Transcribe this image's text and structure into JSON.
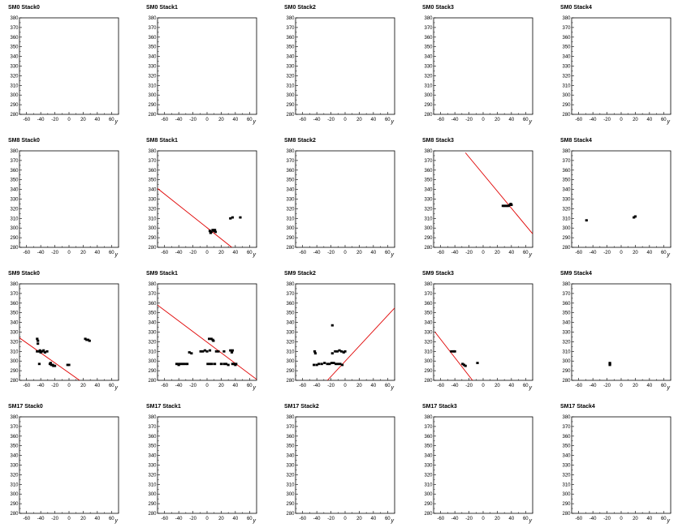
{
  "style": {
    "frame_color": "#000000",
    "fit_color": "#e00000",
    "hit_color": "#000000",
    "background": "#ffffff"
  },
  "chart_data": {
    "type": "scatter",
    "grid": false,
    "xlim": [
      -70,
      70
    ],
    "ylim": [
      280,
      380
    ],
    "xticks": [
      -60,
      -40,
      -20,
      0,
      20,
      40,
      60
    ],
    "yticks": [
      280,
      290,
      300,
      310,
      320,
      330,
      340,
      350,
      360,
      370,
      380
    ],
    "xlabel": "y",
    "ylabel": "",
    "rows": [
      {
        "panels": [
          {
            "title": "SM0 Stack0",
            "hits": [],
            "fit": null
          },
          {
            "title": "SM0 Stack1",
            "hits": [],
            "fit": null
          },
          {
            "title": "SM0 Stack2",
            "hits": [],
            "fit": null
          },
          {
            "title": "SM0 Stack3",
            "hits": [],
            "fit": null
          },
          {
            "title": "SM0 Stack4",
            "hits": [],
            "fit": null
          }
        ]
      },
      {
        "panels": [
          {
            "title": "SM8 Stack0",
            "hits": [],
            "fit": null
          },
          {
            "title": "SM8 Stack1",
            "hits": [
              [
                4,
                297
              ],
              [
                6,
                296
              ],
              [
                8,
                298
              ],
              [
                10,
                297
              ],
              [
                12,
                296
              ],
              [
                5,
                295
              ],
              [
                11,
                298
              ],
              [
                33,
                310
              ],
              [
                36,
                311
              ],
              [
                47,
                311
              ]
            ],
            "fit": [
              [
                -70,
                341
              ],
              [
                35,
                280
              ]
            ]
          },
          {
            "title": "SM8 Stack2",
            "hits": [],
            "fit": null
          },
          {
            "title": "SM8 Stack3",
            "hits": [
              [
                28,
                323
              ],
              [
                30,
                323
              ],
              [
                32,
                323
              ],
              [
                34,
                323
              ],
              [
                36,
                323
              ],
              [
                38,
                324
              ],
              [
                40,
                324
              ],
              [
                39,
                325
              ]
            ],
            "fit": [
              [
                -25,
                378
              ],
              [
                70,
                294
              ]
            ]
          },
          {
            "title": "SM8 Stack4",
            "hits": [
              [
                -49,
                308
              ],
              [
                18,
                311
              ],
              [
                20,
                312
              ]
            ],
            "fit": null
          }
        ]
      },
      {
        "panels": [
          {
            "title": "SM9 Stack0",
            "hits": [
              [
                -45,
                323
              ],
              [
                -44,
                321
              ],
              [
                -44,
                318
              ],
              [
                -45,
                310
              ],
              [
                -42,
                310
              ],
              [
                -40,
                309
              ],
              [
                -38,
                310
              ],
              [
                -36,
                311
              ],
              [
                -34,
                309
              ],
              [
                -31,
                310
              ],
              [
                -41,
                311
              ],
              [
                -27,
                297
              ],
              [
                -25,
                296
              ],
              [
                -23,
                296
              ],
              [
                -22,
                295
              ],
              [
                -26,
                298
              ],
              [
                -20,
                295
              ],
              [
                -42,
                297
              ],
              [
                0,
                296
              ],
              [
                -2,
                296
              ],
              [
                23,
                323
              ],
              [
                25,
                322
              ],
              [
                27,
                322
              ],
              [
                29,
                321
              ]
            ],
            "fit": [
              [
                -70,
                324
              ],
              [
                15,
                280
              ]
            ]
          },
          {
            "title": "SM9 Stack1",
            "hits": [
              [
                -43,
                297
              ],
              [
                -40,
                297
              ],
              [
                -37,
                297
              ],
              [
                -34,
                297
              ],
              [
                -31,
                297
              ],
              [
                -28,
                297
              ],
              [
                -40,
                296
              ],
              [
                -25,
                309
              ],
              [
                -22,
                308
              ],
              [
                -9,
                310
              ],
              [
                -6,
                310
              ],
              [
                -3,
                311
              ],
              [
                0,
                310
              ],
              [
                4,
                311
              ],
              [
                3,
                323
              ],
              [
                6,
                323
              ],
              [
                8,
                322
              ],
              [
                9,
                321
              ],
              [
                13,
                310
              ],
              [
                16,
                310
              ],
              [
                24,
                310
              ],
              [
                33,
                311
              ],
              [
                35,
                309
              ],
              [
                36,
                311
              ],
              [
                1,
                297
              ],
              [
                4,
                297
              ],
              [
                7,
                297
              ],
              [
                11,
                297
              ],
              [
                20,
                297
              ],
              [
                24,
                297
              ],
              [
                27,
                297
              ],
              [
                30,
                296
              ],
              [
                36,
                297
              ],
              [
                38,
                297
              ],
              [
                41,
                297
              ],
              [
                40,
                296
              ]
            ],
            "fit": [
              [
                -70,
                358
              ],
              [
                70,
                281
              ]
            ]
          },
          {
            "title": "SM9 Stack2",
            "hits": [
              [
                -43,
                310
              ],
              [
                -42,
                308
              ],
              [
                -44,
                296
              ],
              [
                -40,
                296
              ],
              [
                -37,
                297
              ],
              [
                -33,
                297
              ],
              [
                -29,
                298
              ],
              [
                -25,
                297
              ],
              [
                -22,
                297
              ],
              [
                -19,
                298
              ],
              [
                -16,
                298
              ],
              [
                -13,
                297
              ],
              [
                -10,
                297
              ],
              [
                -7,
                297
              ],
              [
                -4,
                296
              ],
              [
                -18,
                337
              ],
              [
                -18,
                308
              ],
              [
                -14,
                310
              ],
              [
                -11,
                310
              ],
              [
                -8,
                311
              ],
              [
                -5,
                310
              ],
              [
                -2,
                309
              ],
              [
                0,
                310
              ]
            ],
            "fit": [
              [
                -25,
                280
              ],
              [
                70,
                355
              ]
            ]
          },
          {
            "title": "SM9 Stack3",
            "hits": [
              [
                -45,
                310
              ],
              [
                -42,
                310
              ],
              [
                -40,
                310
              ],
              [
                -29,
                297
              ],
              [
                -27,
                296
              ],
              [
                -25,
                295
              ],
              [
                -8,
                298
              ]
            ],
            "fit": [
              [
                -68,
                330
              ],
              [
                -15,
                280
              ]
            ]
          },
          {
            "title": "SM9 Stack4",
            "hits": [
              [
                -16,
                296
              ],
              [
                -16,
                297
              ],
              [
                -16,
                298
              ]
            ],
            "fit": null
          }
        ]
      },
      {
        "panels": [
          {
            "title": "SM17 Stack0",
            "hits": [],
            "fit": null
          },
          {
            "title": "SM17 Stack1",
            "hits": [],
            "fit": null
          },
          {
            "title": "SM17 Stack2",
            "hits": [],
            "fit": null
          },
          {
            "title": "SM17 Stack3",
            "hits": [],
            "fit": null
          },
          {
            "title": "SM17 Stack4",
            "hits": [],
            "fit": null
          }
        ]
      }
    ]
  }
}
